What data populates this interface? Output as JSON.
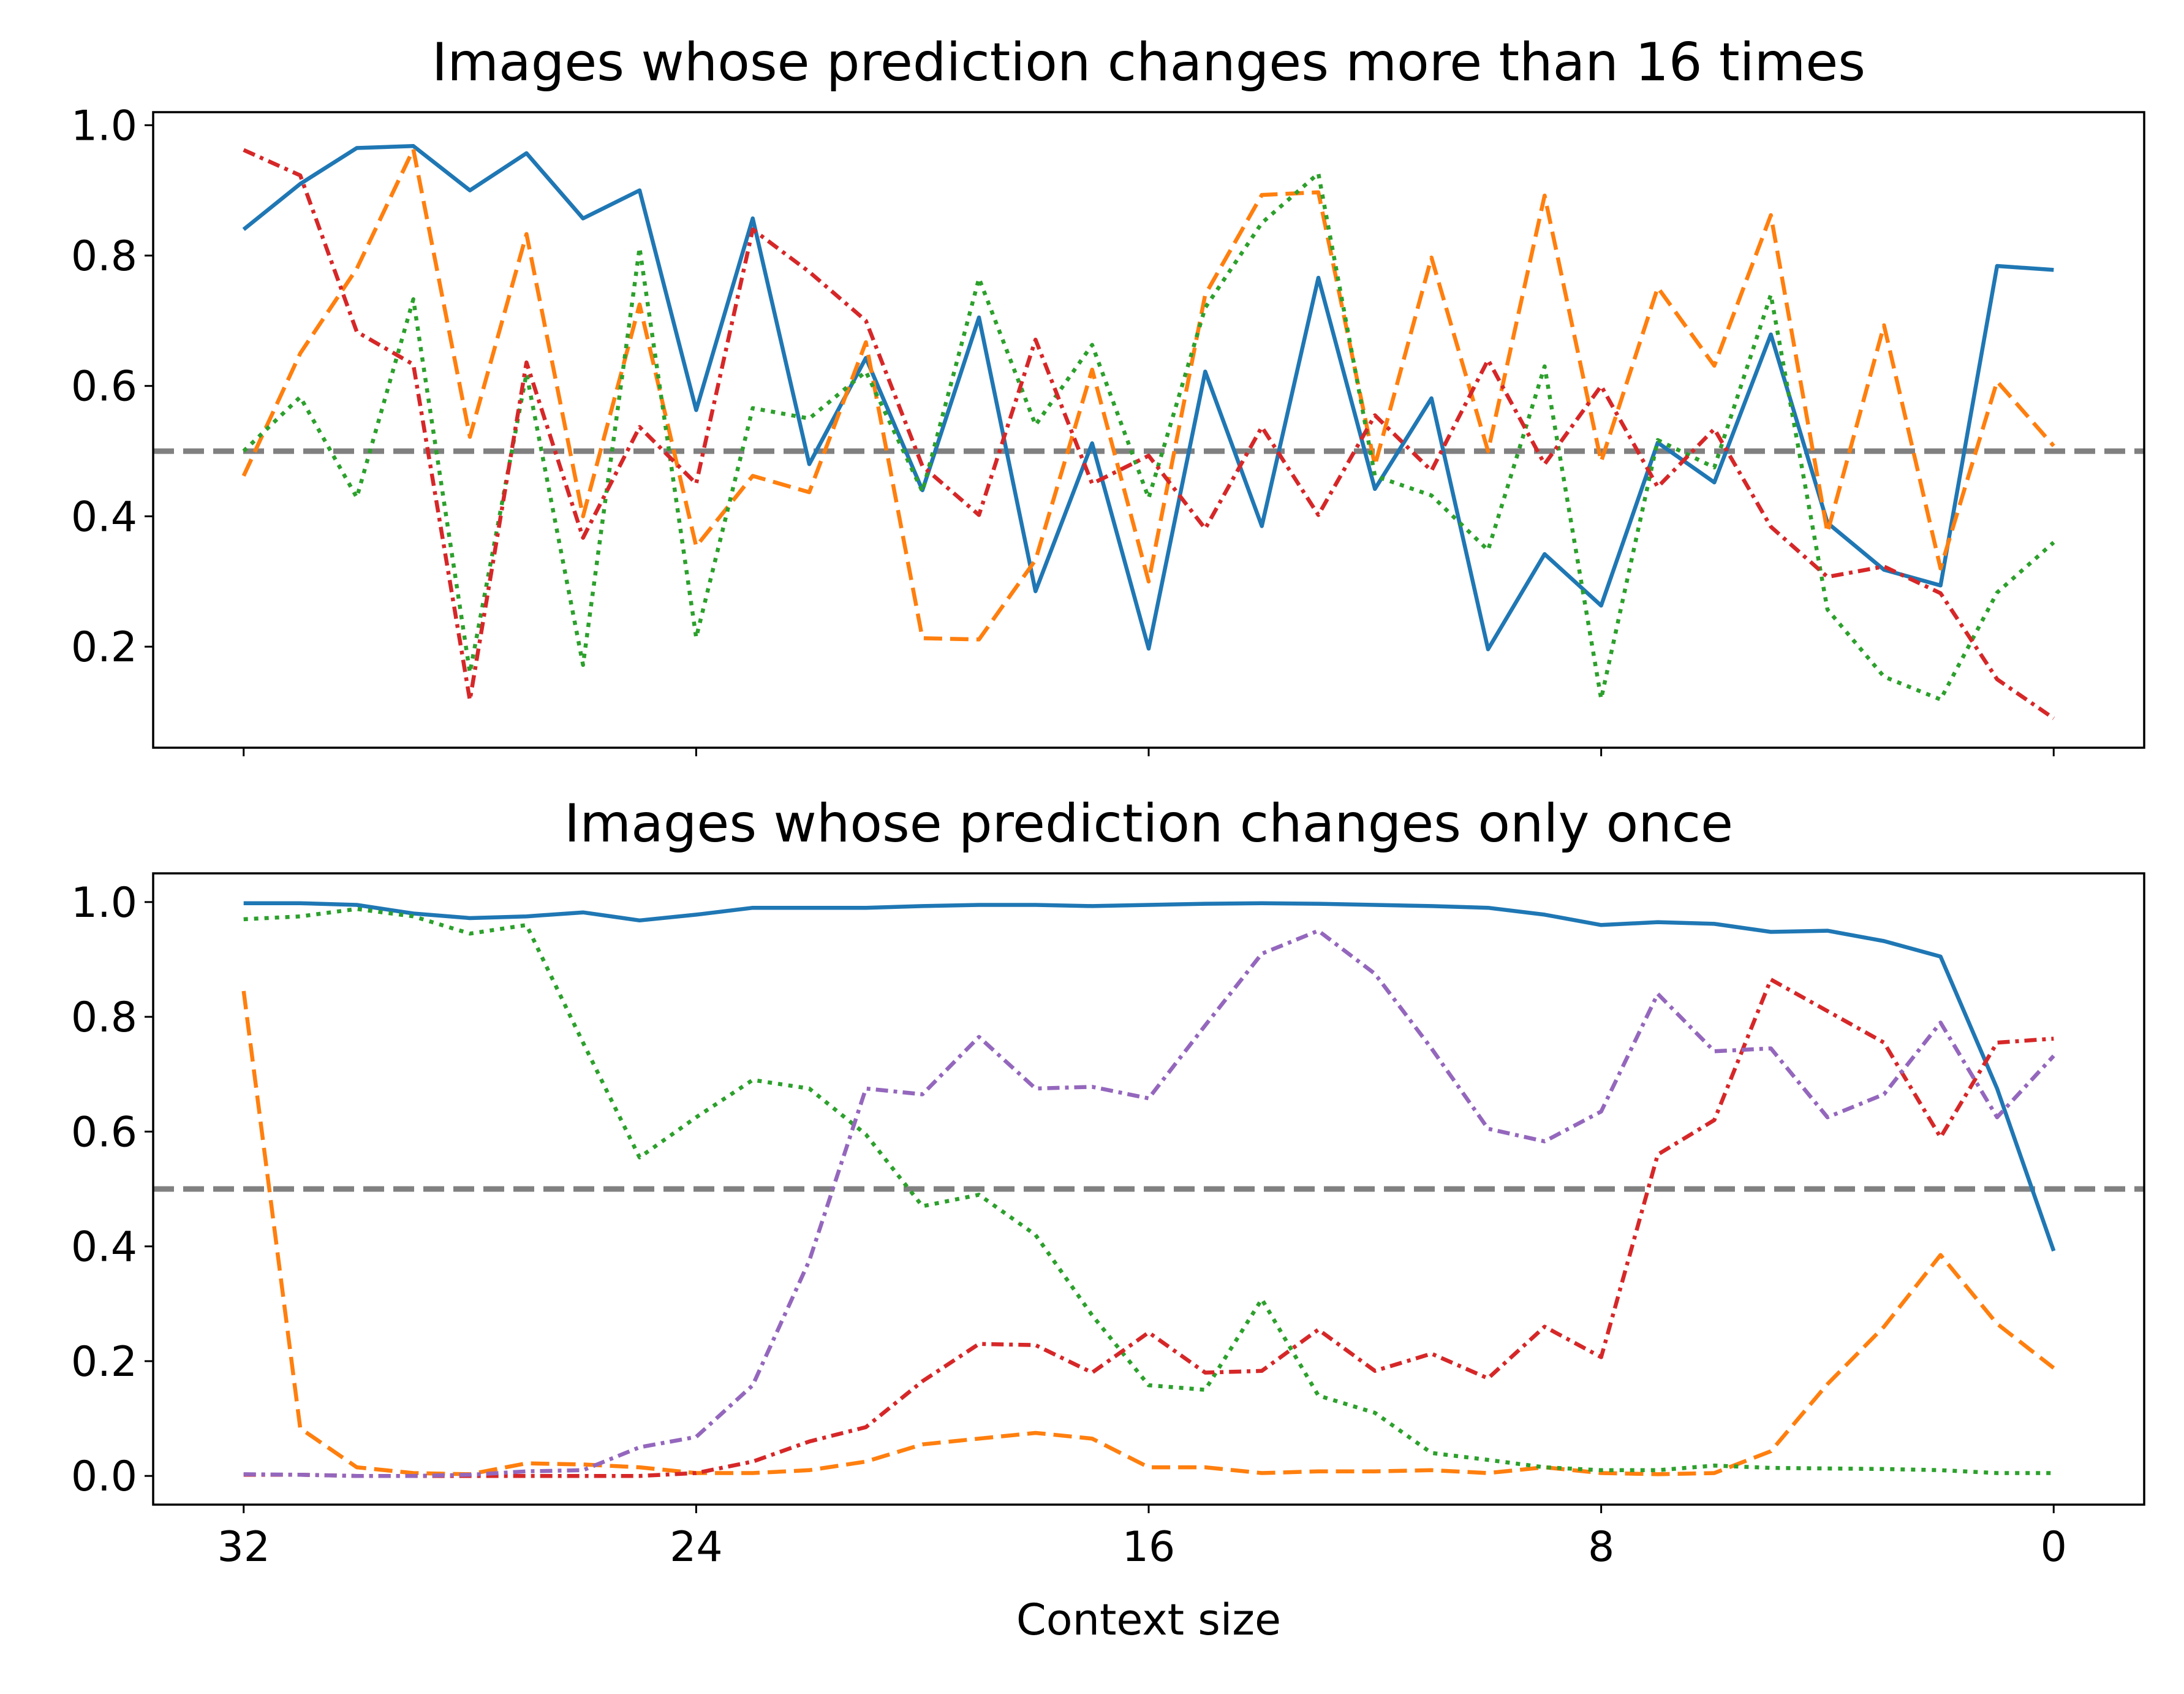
{
  "chart_data": [
    {
      "type": "line",
      "title": "Images whose prediction changes more than 16 times",
      "xlabel": "",
      "ylabel": "",
      "xlim": [
        33.6,
        -1.6
      ],
      "ylim": [
        0.045,
        1.02
      ],
      "yticks": [
        0.2,
        0.4,
        0.6,
        0.8,
        1.0
      ],
      "ytick_labels": [
        "0.2",
        "0.4",
        "0.6",
        "0.8",
        "1.0"
      ],
      "xticks": [
        32,
        24,
        16,
        8,
        0
      ],
      "xtick_labels": [
        "",
        "",
        "",
        "",
        ""
      ],
      "reference_line": {
        "y": 0.5,
        "color": "#808080",
        "style": "dashed"
      },
      "grid": false,
      "legend": "none",
      "x": [
        32,
        31,
        30,
        29,
        28,
        27,
        26,
        25,
        24,
        23,
        22,
        21,
        20,
        19,
        18,
        17,
        16,
        15,
        14,
        13,
        12,
        11,
        10,
        9,
        8,
        7,
        6,
        5,
        4,
        3,
        2,
        1,
        0
      ],
      "series": [
        {
          "color": "#1f77b4",
          "style": "solid",
          "values": [
            0.84,
            0.91,
            0.965,
            0.968,
            0.9,
            0.957,
            0.857,
            0.9,
            0.563,
            0.857,
            0.48,
            0.643,
            0.44,
            0.705,
            0.285,
            0.512,
            0.197,
            0.622,
            0.385,
            0.766,
            0.442,
            0.581,
            0.196,
            0.342,
            0.263,
            0.513,
            0.452,
            0.679,
            0.39,
            0.318,
            0.294,
            0.784,
            0.778
          ]
        },
        {
          "color": "#ff7f0e",
          "style": "dashed",
          "values": [
            0.462,
            0.65,
            0.78,
            0.963,
            0.522,
            0.833,
            0.4,
            0.725,
            0.354,
            0.462,
            0.437,
            0.667,
            0.213,
            0.211,
            0.333,
            0.625,
            0.3,
            0.74,
            0.893,
            0.897,
            0.478,
            0.797,
            0.5,
            0.892,
            0.484,
            0.751,
            0.631,
            0.862,
            0.375,
            0.693,
            0.32,
            0.607,
            0.508
          ]
        },
        {
          "color": "#2ca02c",
          "style": "dotted",
          "values": [
            0.5,
            0.583,
            0.429,
            0.733,
            0.16,
            0.619,
            0.172,
            0.812,
            0.214,
            0.566,
            0.55,
            0.622,
            0.438,
            0.765,
            0.54,
            0.663,
            0.428,
            0.72,
            0.85,
            0.926,
            0.462,
            0.432,
            0.348,
            0.63,
            0.12,
            0.517,
            0.475,
            0.74,
            0.257,
            0.154,
            0.119,
            0.283,
            0.36
          ]
        },
        {
          "color": "#d62728",
          "style": "dashdot",
          "values": [
            0.962,
            0.923,
            0.683,
            0.633,
            0.118,
            0.636,
            0.367,
            0.537,
            0.45,
            0.84,
            0.775,
            0.7,
            0.477,
            0.402,
            0.671,
            0.45,
            0.493,
            0.381,
            0.537,
            0.402,
            0.555,
            0.47,
            0.64,
            0.48,
            0.6,
            0.445,
            0.534,
            0.384,
            0.307,
            0.323,
            0.282,
            0.15,
            0.09
          ]
        }
      ]
    },
    {
      "type": "line",
      "title": "Images whose prediction changes only once",
      "xlabel": "Context size",
      "ylabel": "",
      "xlim": [
        33.6,
        -1.6
      ],
      "ylim": [
        -0.05,
        1.05
      ],
      "yticks": [
        0.0,
        0.2,
        0.4,
        0.6,
        0.8,
        1.0
      ],
      "ytick_labels": [
        "0.0",
        "0.2",
        "0.4",
        "0.6",
        "0.8",
        "1.0"
      ],
      "xticks": [
        32,
        24,
        16,
        8,
        0
      ],
      "xtick_labels": [
        "32",
        "24",
        "16",
        "8",
        "0"
      ],
      "reference_line": {
        "y": 0.5,
        "color": "#808080",
        "style": "dashed"
      },
      "grid": false,
      "legend": "none",
      "x": [
        32,
        31,
        30,
        29,
        28,
        27,
        26,
        25,
        24,
        23,
        22,
        21,
        20,
        19,
        18,
        17,
        16,
        15,
        14,
        13,
        12,
        11,
        10,
        9,
        8,
        7,
        6,
        5,
        4,
        3,
        2,
        1,
        0
      ],
      "series": [
        {
          "color": "#1f77b4",
          "style": "solid",
          "values": [
            0.998,
            0.998,
            0.995,
            0.98,
            0.972,
            0.975,
            0.982,
            0.968,
            0.978,
            0.99,
            0.99,
            0.99,
            0.993,
            0.995,
            0.995,
            0.993,
            0.995,
            0.997,
            0.998,
            0.997,
            0.995,
            0.993,
            0.99,
            0.978,
            0.96,
            0.965,
            0.962,
            0.948,
            0.95,
            0.932,
            0.905,
            0.675,
            0.392
          ]
        },
        {
          "color": "#ff7f0e",
          "style": "dashed",
          "values": [
            0.845,
            0.083,
            0.015,
            0.005,
            0.003,
            0.022,
            0.02,
            0.015,
            0.005,
            0.005,
            0.01,
            0.025,
            0.055,
            0.065,
            0.075,
            0.065,
            0.015,
            0.015,
            0.005,
            0.008,
            0.008,
            0.01,
            0.005,
            0.015,
            0.005,
            0.003,
            0.005,
            0.043,
            0.16,
            0.26,
            0.385,
            0.265,
            0.188
          ]
        },
        {
          "color": "#2ca02c",
          "style": "dotted",
          "values": [
            0.97,
            0.975,
            0.988,
            0.975,
            0.945,
            0.96,
            0.755,
            0.555,
            0.625,
            0.69,
            0.675,
            0.595,
            0.47,
            0.49,
            0.42,
            0.28,
            0.158,
            0.15,
            0.308,
            0.14,
            0.11,
            0.04,
            0.028,
            0.015,
            0.01,
            0.01,
            0.018,
            0.014,
            0.013,
            0.012,
            0.01,
            0.005,
            0.005
          ]
        },
        {
          "color": "#d62728",
          "style": "dashdot",
          "values": [
            0.002,
            0.002,
            0.0,
            0.0,
            0.0,
            0.0,
            0.0,
            0.0,
            0.005,
            0.025,
            0.06,
            0.085,
            0.165,
            0.23,
            0.228,
            0.18,
            0.25,
            0.18,
            0.183,
            0.255,
            0.183,
            0.213,
            0.17,
            0.26,
            0.207,
            0.56,
            0.62,
            0.865,
            0.81,
            0.755,
            0.59,
            0.755,
            0.762
          ]
        },
        {
          "color": "#9467bd",
          "style": "dashdot",
          "values": [
            0.003,
            0.002,
            0.0,
            0.0,
            0.002,
            0.008,
            0.01,
            0.05,
            0.068,
            0.158,
            0.375,
            0.675,
            0.665,
            0.765,
            0.675,
            0.678,
            0.658,
            0.785,
            0.91,
            0.95,
            0.875,
            0.745,
            0.605,
            0.583,
            0.635,
            0.84,
            0.74,
            0.745,
            0.625,
            0.665,
            0.79,
            0.625,
            0.732
          ]
        }
      ]
    }
  ]
}
